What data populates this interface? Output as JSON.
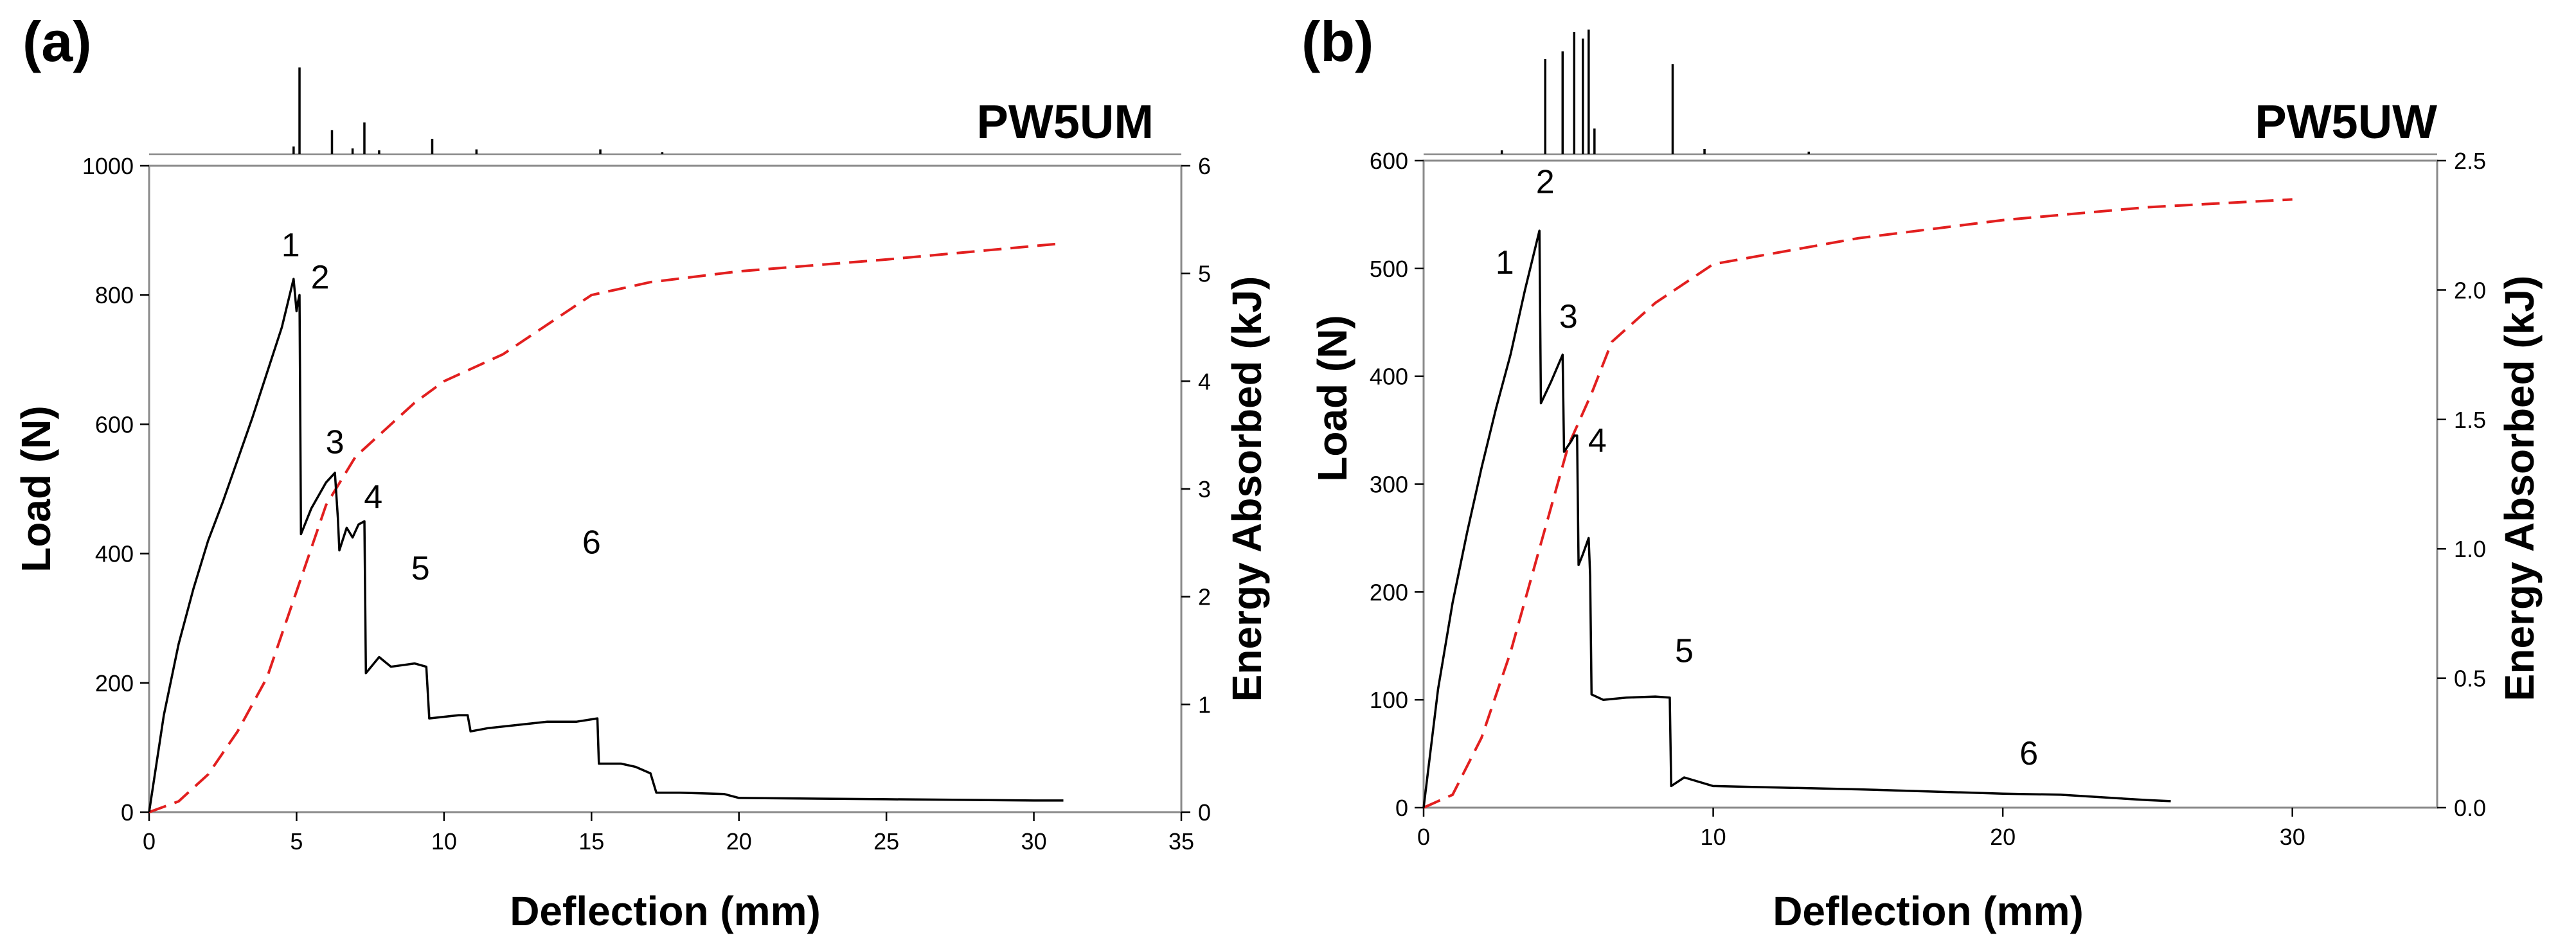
{
  "chart_data": [
    {
      "type": "line",
      "panel_label": "(a)",
      "sample_label": "PW5UM",
      "xlabel": "Deflection (mm)",
      "ylabel": "Load (N)",
      "y2label": "Energy Absorbed (kJ)",
      "xlim": [
        0,
        35
      ],
      "ylim": [
        0,
        1000
      ],
      "y2lim": [
        0,
        6
      ],
      "x_ticks": [
        0,
        5,
        10,
        15,
        20,
        25,
        30,
        35
      ],
      "y_ticks": [
        0,
        200,
        400,
        600,
        800,
        1000
      ],
      "y2_ticks": [
        0,
        1,
        2,
        3,
        4,
        5,
        6
      ],
      "tick_format": {
        "x": "int",
        "y": "int",
        "y2": "int"
      },
      "series": [
        {
          "name": "Load",
          "axis": "left",
          "color": "#000000",
          "style": "solid",
          "points": [
            [
              0,
              0
            ],
            [
              0.5,
              150
            ],
            [
              1,
              260
            ],
            [
              1.5,
              345
            ],
            [
              2,
              420
            ],
            [
              2.5,
              480
            ],
            [
              3,
              545
            ],
            [
              3.5,
              610
            ],
            [
              4,
              680
            ],
            [
              4.5,
              750
            ],
            [
              4.9,
              825
            ],
            [
              5.0,
              775
            ],
            [
              5.05,
              790
            ],
            [
              5.1,
              800
            ],
            [
              5.15,
              430
            ],
            [
              5.5,
              470
            ],
            [
              6.0,
              510
            ],
            [
              6.3,
              525
            ],
            [
              6.4,
              455
            ],
            [
              6.45,
              405
            ],
            [
              6.7,
              440
            ],
            [
              6.9,
              425
            ],
            [
              7.1,
              445
            ],
            [
              7.3,
              450
            ],
            [
              7.35,
              215
            ],
            [
              7.8,
              240
            ],
            [
              8.2,
              225
            ],
            [
              9.0,
              230
            ],
            [
              9.4,
              225
            ],
            [
              9.5,
              145
            ],
            [
              10.5,
              150
            ],
            [
              10.8,
              150
            ],
            [
              10.9,
              125
            ],
            [
              11.5,
              130
            ],
            [
              12.5,
              135
            ],
            [
              13.5,
              140
            ],
            [
              14.5,
              140
            ],
            [
              15.2,
              145
            ],
            [
              15.25,
              75
            ],
            [
              16,
              75
            ],
            [
              16.5,
              70
            ],
            [
              17.0,
              60
            ],
            [
              17.2,
              30
            ],
            [
              18,
              30
            ],
            [
              19.5,
              28
            ],
            [
              20.0,
              22
            ],
            [
              25,
              20
            ],
            [
              30,
              18
            ],
            [
              31,
              18
            ]
          ]
        },
        {
          "name": "Energy Absorbed",
          "axis": "right",
          "color": "#e21f1f",
          "style": "dashed",
          "points": [
            [
              0,
              0
            ],
            [
              1,
              0.1
            ],
            [
              2,
              0.35
            ],
            [
              3,
              0.75
            ],
            [
              4,
              1.25
            ],
            [
              5,
              2.05
            ],
            [
              6,
              2.85
            ],
            [
              7,
              3.3
            ],
            [
              8,
              3.55
            ],
            [
              9,
              3.8
            ],
            [
              10,
              4.0
            ],
            [
              12,
              4.25
            ],
            [
              15,
              4.8
            ],
            [
              17,
              4.92
            ],
            [
              20,
              5.02
            ],
            [
              25,
              5.13
            ],
            [
              31,
              5.28
            ]
          ]
        }
      ],
      "annotations": [
        {
          "text": "1",
          "x": 4.8,
          "y": 860
        },
        {
          "text": "2",
          "x": 5.8,
          "y": 810
        },
        {
          "text": "3",
          "x": 6.3,
          "y": 555
        },
        {
          "text": "4",
          "x": 7.6,
          "y": 470
        },
        {
          "text": "5",
          "x": 9.2,
          "y": 360
        },
        {
          "text": "6",
          "x": 15.0,
          "y": 400
        }
      ],
      "acoustic_events": [
        [
          4.9,
          0.08
        ],
        [
          5.1,
          0.9
        ],
        [
          6.2,
          0.25
        ],
        [
          6.9,
          0.06
        ],
        [
          7.3,
          0.33
        ],
        [
          7.8,
          0.04
        ],
        [
          9.6,
          0.16
        ],
        [
          11.1,
          0.05
        ],
        [
          15.3,
          0.05
        ],
        [
          17.4,
          0.02
        ]
      ]
    },
    {
      "type": "line",
      "panel_label": "(b)",
      "sample_label": "PW5UW",
      "xlabel": "Deflection (mm)",
      "ylabel": "Load (N)",
      "y2label": "Energy Absorbed (kJ)",
      "xlim": [
        0,
        35
      ],
      "ylim": [
        0,
        600
      ],
      "y2lim": [
        0,
        2.5
      ],
      "x_ticks": [
        0,
        10,
        20,
        30
      ],
      "y_ticks": [
        0,
        100,
        200,
        300,
        400,
        500,
        600
      ],
      "y2_ticks": [
        0,
        0.5,
        1.0,
        1.5,
        2.0,
        2.5
      ],
      "tick_format": {
        "x": "int",
        "y": "int",
        "y2": "1dp"
      },
      "series": [
        {
          "name": "Load",
          "axis": "left",
          "color": "#000000",
          "style": "solid",
          "points": [
            [
              0,
              0
            ],
            [
              0.5,
              110
            ],
            [
              1,
              190
            ],
            [
              1.5,
              255
            ],
            [
              2,
              315
            ],
            [
              2.5,
              370
            ],
            [
              3,
              420
            ],
            [
              3.5,
              480
            ],
            [
              4.0,
              535
            ],
            [
              4.05,
              375
            ],
            [
              4.4,
              395
            ],
            [
              4.8,
              420
            ],
            [
              4.85,
              330
            ],
            [
              5.1,
              340
            ],
            [
              5.2,
              345
            ],
            [
              5.3,
              345
            ],
            [
              5.35,
              225
            ],
            [
              5.5,
              235
            ],
            [
              5.7,
              250
            ],
            [
              5.75,
              215
            ],
            [
              5.8,
              105
            ],
            [
              6.2,
              100
            ],
            [
              7,
              102
            ],
            [
              8.0,
              103
            ],
            [
              8.5,
              102
            ],
            [
              8.55,
              20
            ],
            [
              9,
              28
            ],
            [
              10,
              20
            ],
            [
              15,
              17
            ],
            [
              20,
              13
            ],
            [
              22,
              12
            ],
            [
              25,
              7
            ],
            [
              25.8,
              6
            ]
          ]
        },
        {
          "name": "Energy Absorbed",
          "axis": "right",
          "color": "#e21f1f",
          "style": "dashed",
          "points": [
            [
              0,
              0
            ],
            [
              1,
              0.05
            ],
            [
              2,
              0.27
            ],
            [
              3,
              0.6
            ],
            [
              4,
              1.0
            ],
            [
              5,
              1.4
            ],
            [
              5.8,
              1.6
            ],
            [
              6.5,
              1.8
            ],
            [
              8,
              1.95
            ],
            [
              10,
              2.1
            ],
            [
              15,
              2.2
            ],
            [
              20,
              2.27
            ],
            [
              25,
              2.32
            ],
            [
              30,
              2.35
            ]
          ]
        }
      ],
      "annotations": [
        {
          "text": "1",
          "x": 2.8,
          "y": 495
        },
        {
          "text": "2",
          "x": 4.2,
          "y": 570
        },
        {
          "text": "3",
          "x": 5.0,
          "y": 445
        },
        {
          "text": "4",
          "x": 6.0,
          "y": 330
        },
        {
          "text": "5",
          "x": 9.0,
          "y": 135
        },
        {
          "text": "6",
          "x": 20.9,
          "y": 40
        }
      ],
      "acoustic_events": [
        [
          2.7,
          0.03
        ],
        [
          4.2,
          0.74
        ],
        [
          4.8,
          0.8
        ],
        [
          5.2,
          0.95
        ],
        [
          5.5,
          0.9
        ],
        [
          5.7,
          0.97
        ],
        [
          5.9,
          0.2
        ],
        [
          8.6,
          0.7
        ],
        [
          9.7,
          0.04
        ],
        [
          13.3,
          0.02
        ]
      ]
    }
  ]
}
